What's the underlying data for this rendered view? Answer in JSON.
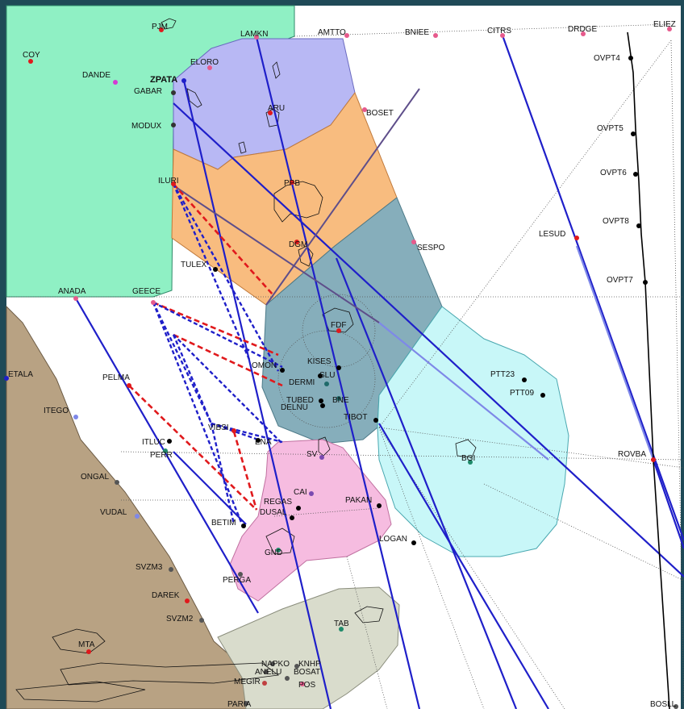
{
  "map": {
    "colors": {
      "frame": "#1f4a57",
      "background": "#ffffff",
      "green_zone": "#8ff0c4",
      "tan_land": "#b8a283",
      "purple_sector": "#b8b8f4",
      "orange_sector": "#f8bc7f",
      "teal_sector": "#86aebb",
      "cyan_sector": "#c8f7f8",
      "pink_sector": "#f6bce0",
      "grey_sector": "#d9dccc",
      "route_blue": "#1f1fc9",
      "route_light_blue": "#7e88e8",
      "route_purple": "#5e4e8a",
      "route_red_dashed": "#e0191c",
      "route_blue_dashed": "#1f1fc9",
      "route_black": "#000000"
    },
    "waypoints": [
      {
        "name": "PJM",
        "bold": false
      },
      {
        "name": "LAMKN",
        "bold": false
      },
      {
        "name": "AMTTO",
        "bold": false
      },
      {
        "name": "BNIEE",
        "bold": false
      },
      {
        "name": "CITRS",
        "bold": false
      },
      {
        "name": "DRDGE",
        "bold": false
      },
      {
        "name": "ELIEZ",
        "bold": false
      },
      {
        "name": "COY",
        "bold": false
      },
      {
        "name": "DANDE",
        "bold": false
      },
      {
        "name": "ZPATA",
        "bold": true
      },
      {
        "name": "GABAR",
        "bold": false
      },
      {
        "name": "ELORO",
        "bold": false
      },
      {
        "name": "OVPT4",
        "bold": false
      },
      {
        "name": "ARU",
        "bold": false
      },
      {
        "name": "BOSET",
        "bold": false
      },
      {
        "name": "MODUX",
        "bold": false
      },
      {
        "name": "OVPT5",
        "bold": false
      },
      {
        "name": "OVPT6",
        "bold": false
      },
      {
        "name": "ILURI",
        "bold": false
      },
      {
        "name": "PPB",
        "bold": false
      },
      {
        "name": "OVPT8",
        "bold": false
      },
      {
        "name": "LESUD",
        "bold": false
      },
      {
        "name": "SESPO",
        "bold": false
      },
      {
        "name": "DGM",
        "bold": false
      },
      {
        "name": "TULEX",
        "bold": false
      },
      {
        "name": "OVPT7",
        "bold": false
      },
      {
        "name": "ANADA",
        "bold": false
      },
      {
        "name": "GEECE",
        "bold": false
      },
      {
        "name": "FDF",
        "bold": false
      },
      {
        "name": "KISES",
        "bold": false
      },
      {
        "name": "OMON",
        "bold": false
      },
      {
        "name": "DERMI",
        "bold": false
      },
      {
        "name": "SLU",
        "bold": false
      },
      {
        "name": "PTT23",
        "bold": false
      },
      {
        "name": "PTT09",
        "bold": false
      },
      {
        "name": "ETALA",
        "bold": false
      },
      {
        "name": "PELMA",
        "bold": false
      },
      {
        "name": "TUBED",
        "bold": false
      },
      {
        "name": "BNE",
        "bold": false
      },
      {
        "name": "DELNU",
        "bold": false
      },
      {
        "name": "TIBOT",
        "bold": false
      },
      {
        "name": "ITEGO",
        "bold": false
      },
      {
        "name": "VIBSI",
        "bold": false
      },
      {
        "name": "ENA",
        "bold": false
      },
      {
        "name": "SV",
        "bold": false
      },
      {
        "name": "ITLUC",
        "bold": false
      },
      {
        "name": "PERR",
        "bold": false
      },
      {
        "name": "BGI",
        "bold": false
      },
      {
        "name": "ROVBA",
        "bold": false
      },
      {
        "name": "ONGAL",
        "bold": false
      },
      {
        "name": "CAI",
        "bold": false
      },
      {
        "name": "REGAS",
        "bold": false
      },
      {
        "name": "PAKAN",
        "bold": false
      },
      {
        "name": "VUDAL",
        "bold": false
      },
      {
        "name": "DUSAL",
        "bold": false
      },
      {
        "name": "BETIM",
        "bold": false
      },
      {
        "name": "LOGAN",
        "bold": false
      },
      {
        "name": "GND",
        "bold": false
      },
      {
        "name": "SVZM3",
        "bold": false
      },
      {
        "name": "PERGA",
        "bold": false
      },
      {
        "name": "DAREK",
        "bold": false
      },
      {
        "name": "SVZM2",
        "bold": false
      },
      {
        "name": "TAB",
        "bold": false
      },
      {
        "name": "MTA",
        "bold": false
      },
      {
        "name": "NAPKO",
        "bold": false
      },
      {
        "name": "KNHP",
        "bold": false
      },
      {
        "name": "ANELU",
        "bold": false
      },
      {
        "name": "BOSAT",
        "bold": false
      },
      {
        "name": "MEGIR",
        "bold": false
      },
      {
        "name": "POS",
        "bold": false
      },
      {
        "name": "PARIA",
        "bold": false
      },
      {
        "name": "BOSLL",
        "bold": false
      }
    ]
  }
}
